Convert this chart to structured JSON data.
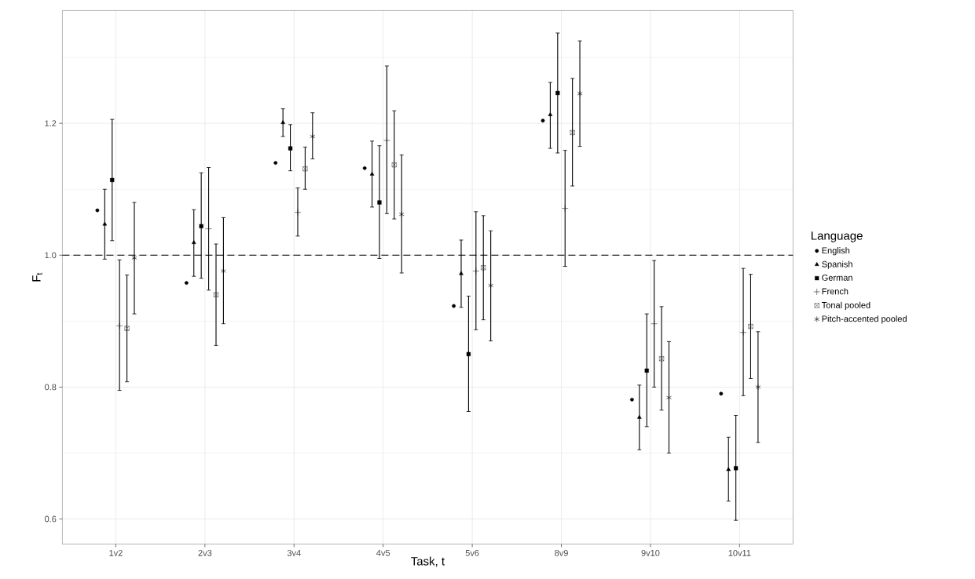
{
  "chart_data": {
    "type": "scatter",
    "xlabel": "Task, t",
    "ylabel": "F$_{t}$",
    "legend_title": "Language",
    "legend": "right",
    "grid": true,
    "categories": [
      "1v2",
      "2v3",
      "3v4",
      "4v5",
      "5v6",
      "8v9",
      "9v10",
      "10v11"
    ],
    "ylim": [
      0.562,
      1.371
    ],
    "yticks": [
      {
        "value": 0.6,
        "label": "0.6"
      },
      {
        "value": 0.8,
        "label": "0.8"
      },
      {
        "value": 1.0,
        "label": "1.0"
      },
      {
        "value": 1.2,
        "label": "1.2"
      }
    ],
    "ref_lines": [
      {
        "axis": "y",
        "value": 1.0,
        "line_style": "dashed",
        "color": "#000000"
      }
    ],
    "series": [
      {
        "name": "English",
        "color": "#000000",
        "marker": "circle",
        "values": [
          1.068,
          0.958,
          1.14,
          1.132,
          0.923,
          1.204,
          0.781,
          0.79
        ]
      },
      {
        "name": "Spanish",
        "color": "#000000",
        "marker": "triangle",
        "values": [
          1.047,
          1.019,
          1.201,
          1.123,
          0.972,
          1.213,
          0.754,
          0.675
        ],
        "errors": [
          [
            0.994,
            1.1
          ],
          [
            0.968,
            1.069
          ],
          [
            1.18,
            1.222
          ],
          [
            1.073,
            1.173
          ],
          [
            0.921,
            1.023
          ],
          [
            1.162,
            1.262
          ],
          [
            0.705,
            0.803
          ],
          [
            0.627,
            0.724
          ]
        ]
      },
      {
        "name": "German",
        "color": "#000000",
        "marker": "square",
        "values": [
          1.114,
          1.044,
          1.162,
          1.08,
          0.85,
          1.246,
          0.825,
          0.677
        ],
        "errors": [
          [
            1.022,
            1.206
          ],
          [
            0.965,
            1.125
          ],
          [
            1.128,
            1.198
          ],
          [
            0.995,
            1.166
          ],
          [
            0.763,
            0.938
          ],
          [
            1.155,
            1.337
          ],
          [
            0.74,
            0.911
          ],
          [
            0.598,
            0.757
          ]
        ]
      },
      {
        "name": "French",
        "color": "#000000",
        "marker": "cross",
        "values": [
          0.893,
          1.04,
          1.065,
          1.174,
          0.976,
          1.071,
          0.896,
          0.883
        ],
        "errors": [
          [
            0.795,
            0.993
          ],
          [
            0.947,
            1.133
          ],
          [
            1.029,
            1.102
          ],
          [
            1.063,
            1.287
          ],
          [
            0.887,
            1.066
          ],
          [
            0.983,
            1.159
          ],
          [
            0.8,
            0.992
          ],
          [
            0.787,
            0.98
          ]
        ]
      },
      {
        "name": "Tonal pooled",
        "color": "#000000",
        "marker": "cross",
        "values": [
          0.889,
          0.94,
          1.131,
          1.137,
          0.981,
          1.186,
          0.843,
          0.892
        ],
        "errors": [
          [
            0.808,
            0.97
          ],
          [
            0.863,
            1.017
          ],
          [
            1.1,
            1.164
          ],
          [
            1.055,
            1.219
          ],
          [
            0.902,
            1.06
          ],
          [
            1.105,
            1.268
          ],
          [
            0.765,
            0.922
          ],
          [
            0.813,
            0.971
          ]
        ]
      },
      {
        "name": "Pitch-accented pooled",
        "color": "#000000",
        "marker": "cross",
        "values": [
          0.996,
          0.976,
          1.18,
          1.062,
          0.954,
          1.245,
          0.784,
          0.8
        ],
        "errors": [
          [
            0.911,
            1.08
          ],
          [
            0.896,
            1.057
          ],
          [
            1.146,
            1.216
          ],
          [
            0.973,
            1.152
          ],
          [
            0.87,
            1.037
          ],
          [
            1.165,
            1.325
          ],
          [
            0.7,
            0.869
          ],
          [
            0.716,
            0.884
          ]
        ]
      }
    ]
  }
}
